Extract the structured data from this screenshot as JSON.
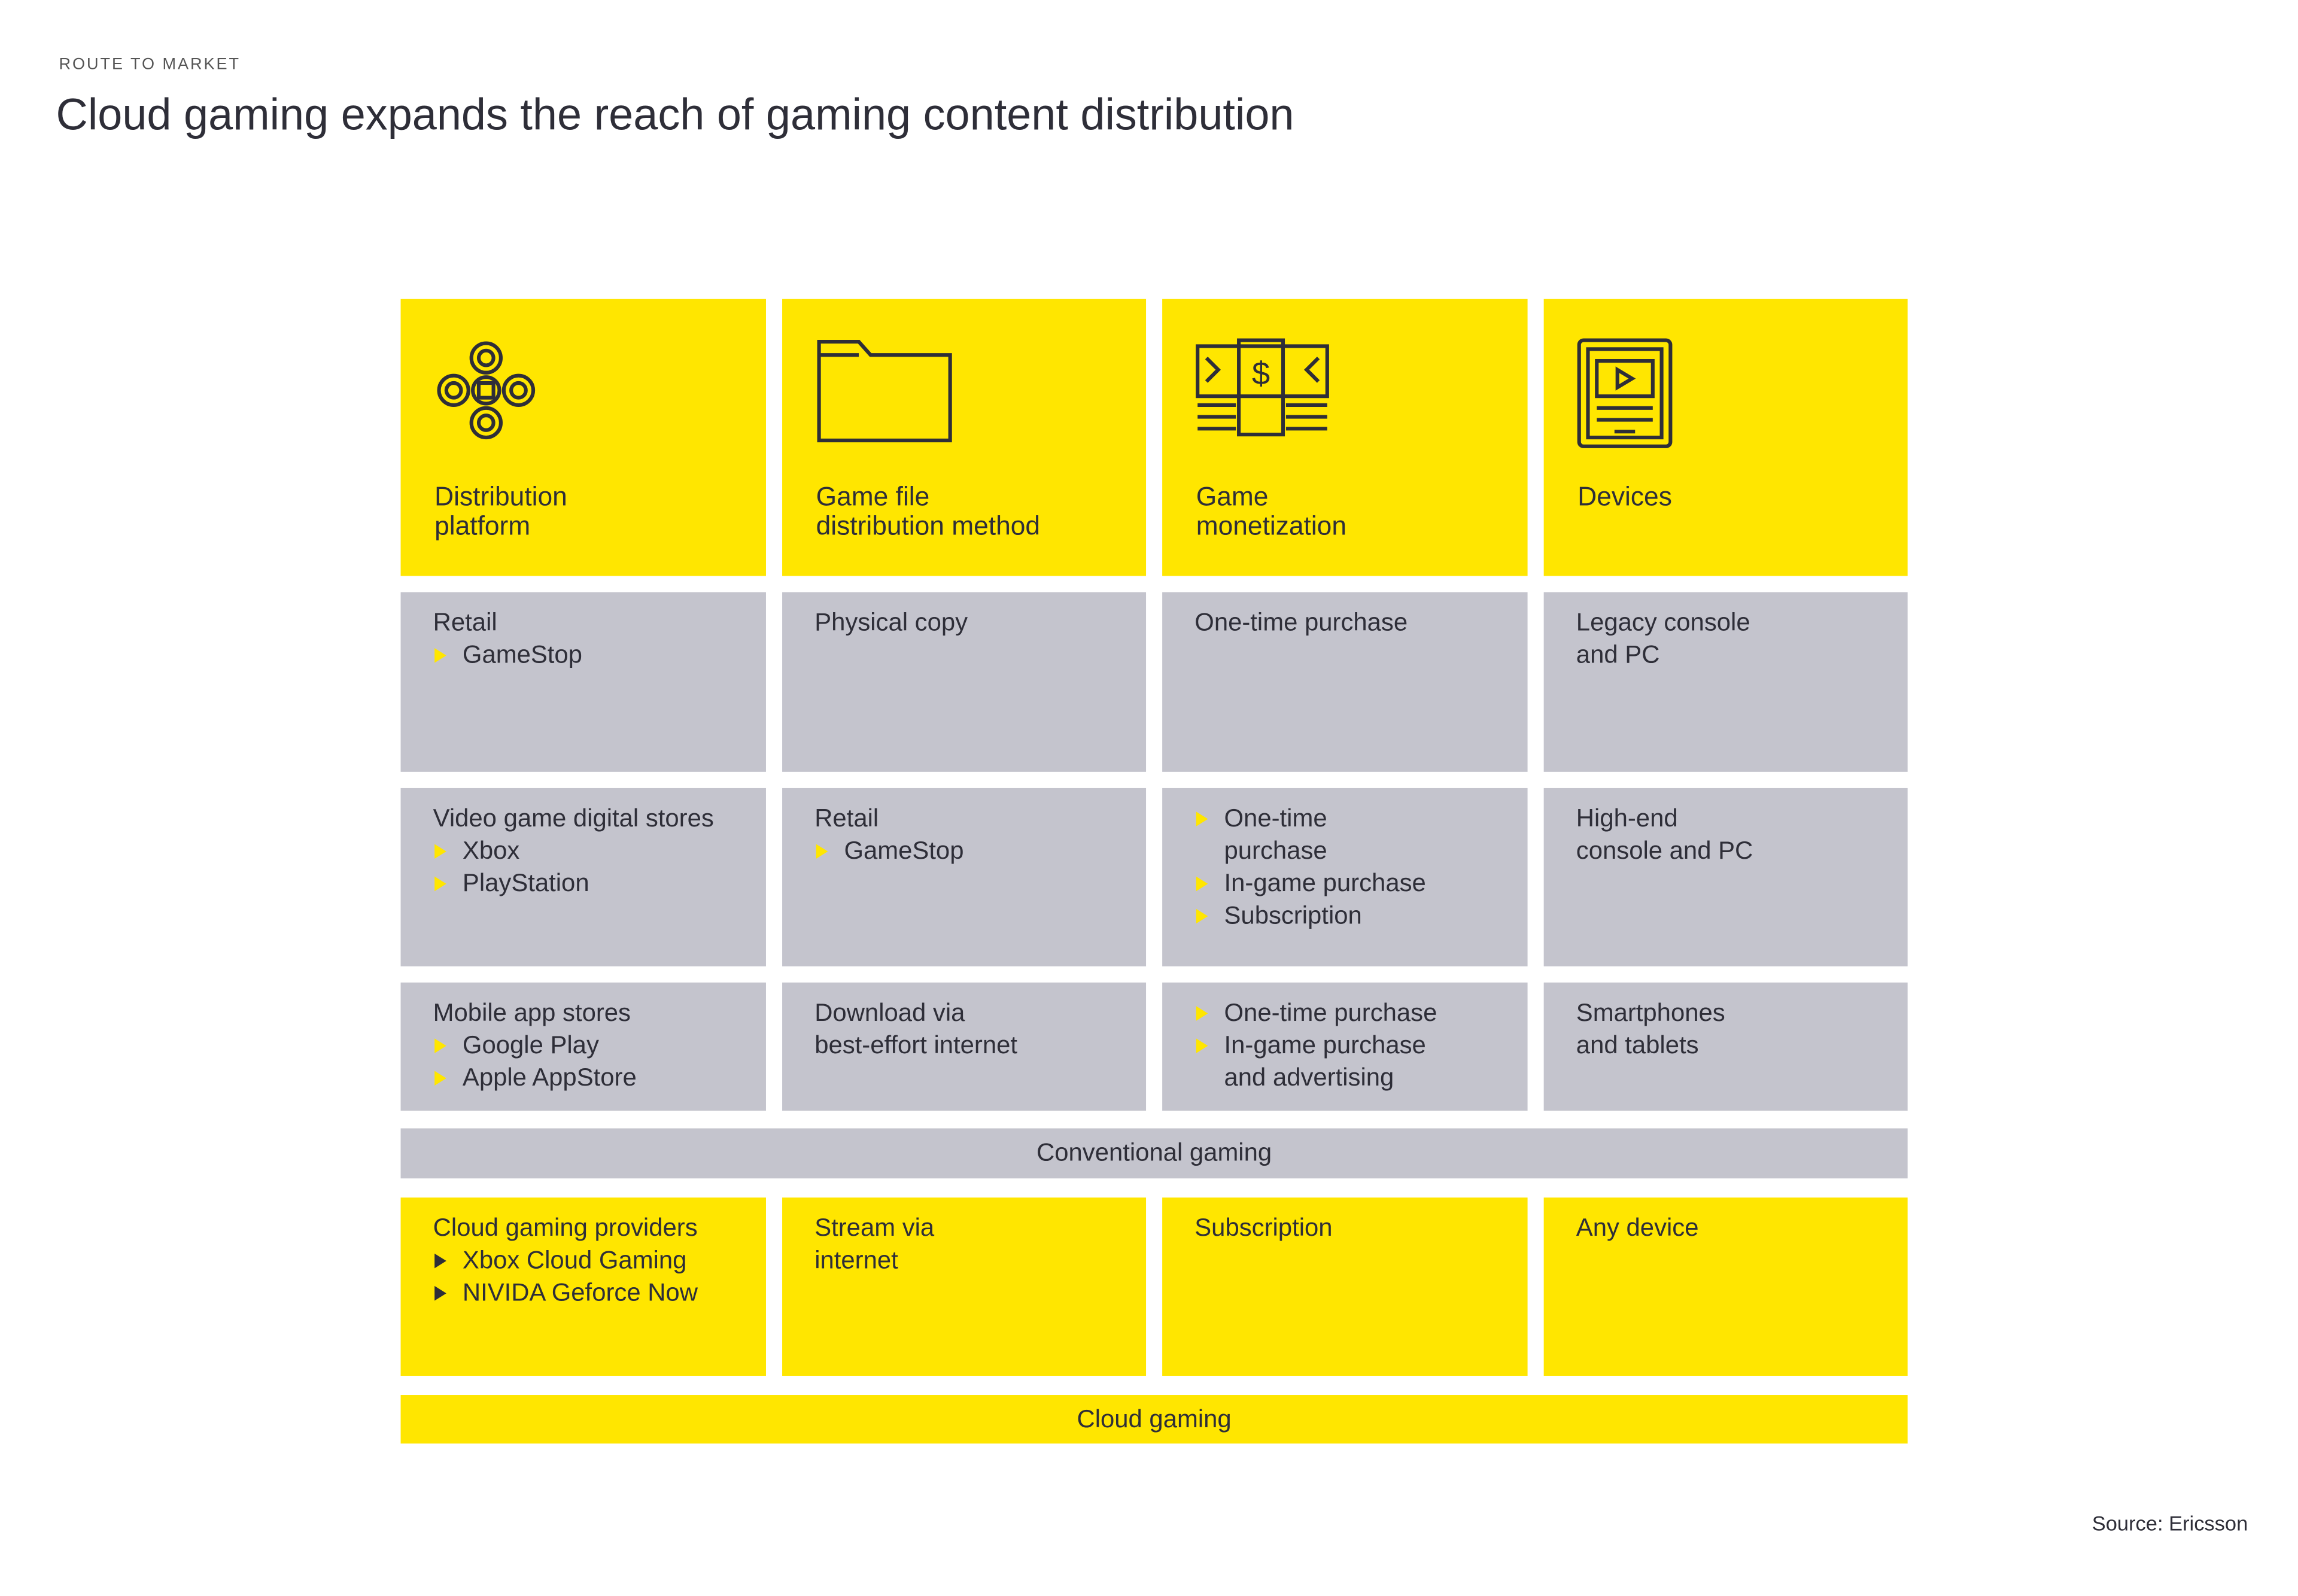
{
  "header": {
    "kicker": "ROUTE TO MARKET",
    "title": "Cloud gaming expands the reach of gaming content distribution"
  },
  "columns": [
    {
      "label": [
        "Distribution",
        "platform"
      ]
    },
    {
      "label": [
        "Game file",
        "distribution method"
      ]
    },
    {
      "label": [
        "Game",
        "monetization"
      ]
    },
    {
      "label": [
        "Devices"
      ]
    }
  ],
  "conventional": {
    "label": "Conventional gaming",
    "rows": [
      [
        {
          "title": [
            "Retail"
          ],
          "bullets": [
            [
              "GameStop"
            ]
          ]
        },
        {
          "title": [
            "Physical copy"
          ],
          "bullets": []
        },
        {
          "title": [
            "One-time purchase"
          ],
          "bullets": []
        },
        {
          "title": [
            "Legacy console",
            "and PC"
          ],
          "bullets": []
        }
      ],
      [
        {
          "title": [
            "Video game digital stores"
          ],
          "bullets": [
            [
              "Xbox"
            ],
            [
              "PlayStation"
            ]
          ]
        },
        {
          "title": [
            "Retail"
          ],
          "bullets": [
            [
              "GameStop"
            ]
          ]
        },
        {
          "title": [],
          "bullets": [
            [
              "One-time",
              "purchase"
            ],
            [
              "In-game purchase"
            ],
            [
              "Subscription"
            ]
          ]
        },
        {
          "title": [
            "High-end",
            "console and PC"
          ],
          "bullets": []
        }
      ],
      [
        {
          "title": [
            "Mobile app stores"
          ],
          "bullets": [
            [
              "Google Play"
            ],
            [
              "Apple AppStore"
            ]
          ]
        },
        {
          "title": [
            "Download via",
            "best-effort internet"
          ],
          "bullets": []
        },
        {
          "title": [],
          "bullets": [
            [
              "One-time purchase"
            ],
            [
              "In-game purchase",
              "and advertising"
            ]
          ]
        },
        {
          "title": [
            "Smartphones",
            "and tablets"
          ],
          "bullets": []
        }
      ]
    ]
  },
  "cloud": {
    "label": "Cloud gaming",
    "cells": [
      {
        "title": [
          "Cloud gaming providers"
        ],
        "bullets": [
          [
            "Xbox Cloud Gaming"
          ],
          [
            "NIVIDA Geforce Now"
          ]
        ]
      },
      {
        "title": [
          "Stream via",
          "internet"
        ],
        "bullets": []
      },
      {
        "title": [
          "Subscription"
        ],
        "bullets": []
      },
      {
        "title": [
          "Any device"
        ],
        "bullets": []
      }
    ]
  },
  "source": "Source: Ericsson"
}
